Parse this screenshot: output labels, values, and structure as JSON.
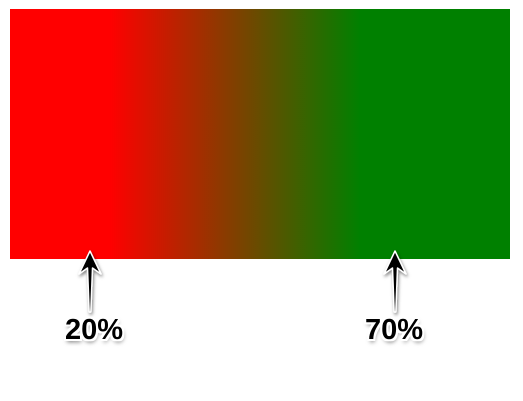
{
  "gradient": {
    "direction": "to right",
    "start_color": "#ff0000",
    "end_color": "#008000"
  },
  "stops": [
    {
      "position_label": "20%",
      "color": "#ff0000"
    },
    {
      "position_label": "70%",
      "color": "#008000"
    }
  ],
  "icons": {
    "arrow": "up-arrow-icon"
  }
}
